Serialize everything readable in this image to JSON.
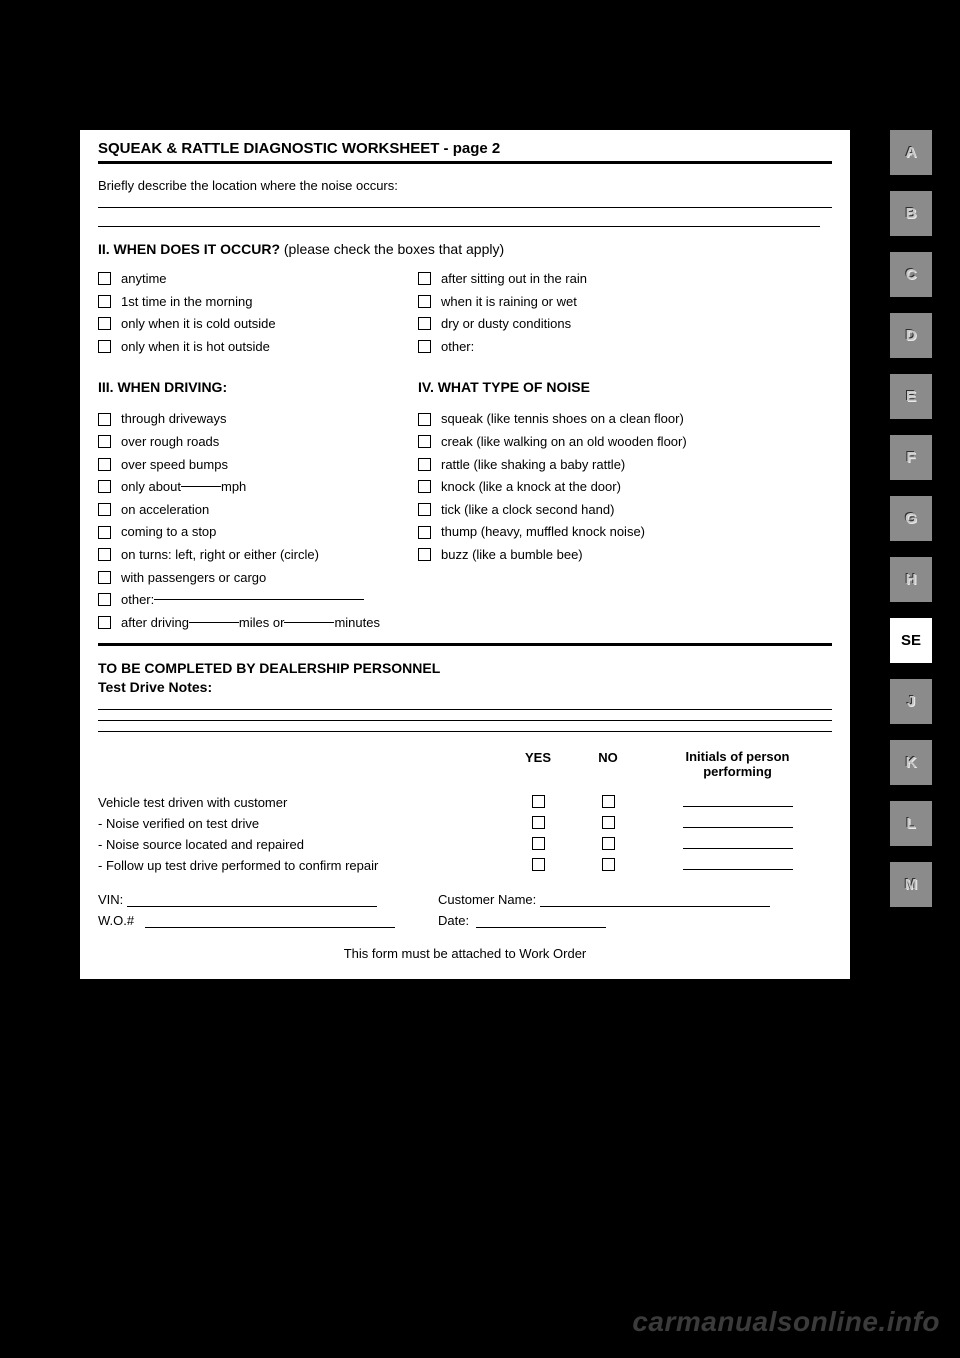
{
  "colors": {
    "page_bg": "#000000",
    "paper_bg": "#ffffff",
    "text": "#000000",
    "tab_bg": "#8b8b8b",
    "tab_active_bg": "#ffffff",
    "emboss_light": "#e9e9e9",
    "emboss_dark": "#2e2e2e",
    "watermark": "#3b3b3b"
  },
  "header": {
    "title": "SQUEAK & RATTLE DIAGNOSTIC WORKSHEET  - page 2",
    "describe_prompt": "Briefly describe the location where the noise occurs:"
  },
  "section2": {
    "heading_bold": "II. WHEN DOES IT OCCUR?",
    "heading_rest": " (please check the boxes that apply)",
    "left": [
      "anytime",
      "1st time in the morning",
      "only when it is cold outside",
      "only when it is hot outside"
    ],
    "right": [
      "after sitting out in the rain",
      "when it is raining or wet",
      "dry or dusty conditions",
      "other:"
    ]
  },
  "section3": {
    "heading": "III. WHEN DRIVING:",
    "items_a": [
      "through driveways",
      "over rough roads",
      "over speed bumps"
    ],
    "item_mph_pre": "only about ",
    "item_mph_post": " mph",
    "items_b": [
      "on acceleration",
      "coming to a stop",
      "on turns: left, right or either (circle)",
      "with passengers or cargo"
    ],
    "item_other": "other: ",
    "item_after_pre": "after driving ",
    "item_after_mid": " miles or ",
    "item_after_post": " minutes"
  },
  "section4": {
    "heading": "IV. WHAT TYPE OF NOISE",
    "items": [
      "squeak (like tennis shoes on a clean floor)",
      "creak (like walking on an old wooden floor)",
      "rattle (like shaking a baby rattle)",
      "knock (like a knock at the door)",
      "tick (like a clock second hand)",
      "thump (heavy, muffled knock noise)",
      "buzz (like a bumble bee)"
    ]
  },
  "dealer": {
    "heading": "TO BE COMPLETED BY DEALERSHIP PERSONNEL",
    "sub": "Test Drive Notes:",
    "col_yes": "YES",
    "col_no": "NO",
    "col_initials_l1": "Initials of person",
    "col_initials_l2": "performing",
    "rows": [
      "Vehicle test driven with customer",
      " - Noise verified on test drive",
      " - Noise source located and repaired",
      " - Follow up test drive performed to confirm repair"
    ],
    "vin_label": "VIN:",
    "cust_label": "Customer Name:",
    "wo_label": "W.O.#",
    "date_label": "Date:",
    "footer": "This form must be attached to Work Order"
  },
  "tabs": {
    "items": [
      "A",
      "B",
      "C",
      "D",
      "E",
      "F",
      "G",
      "H",
      "SE",
      "J",
      "K",
      "L",
      "M"
    ],
    "active": "SE"
  },
  "watermark": "carmanualsonline.info"
}
